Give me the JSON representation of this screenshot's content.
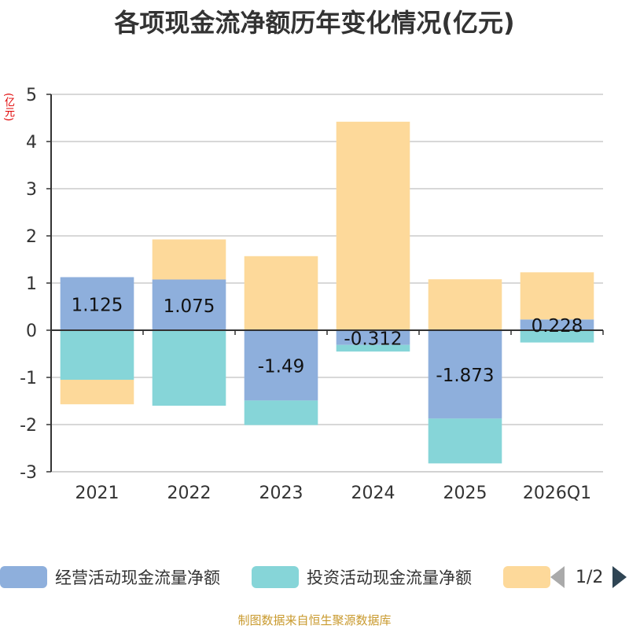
{
  "title": "各项现金流净额历年变化情况(亿元)",
  "unit_label": "(亿元)",
  "source": "制图数据来自恒生聚源数据库",
  "legend": {
    "items": [
      {
        "label": "经营活动现金流量净额",
        "color": "#8eafdc"
      },
      {
        "label": "投资活动现金流量净额",
        "color": "#86d5d8"
      },
      {
        "label": "",
        "color": "#fdd99a"
      }
    ],
    "page_text": "1/2"
  },
  "chart_data": {
    "type": "bar",
    "stacked": true,
    "categories": [
      "2021",
      "2022",
      "2023",
      "2024",
      "2025",
      "2026Q1"
    ],
    "series": [
      {
        "name": "经营活动现金流量净额",
        "color": "#8eafdc",
        "values": [
          1.125,
          1.075,
          -1.49,
          -0.312,
          -1.873,
          0.228
        ],
        "show_labels": true
      },
      {
        "name": "投资活动现金流量净额",
        "color": "#86d5d8",
        "values": [
          -1.05,
          -1.6,
          -0.52,
          -0.14,
          -0.95,
          -0.26
        ],
        "show_labels": false
      },
      {
        "name": "",
        "color": "#fdd99a",
        "values": [
          -0.52,
          0.85,
          1.57,
          4.42,
          1.08,
          1.0
        ],
        "show_labels": false
      }
    ],
    "ylim": [
      -3,
      5
    ],
    "yticks": [
      5,
      4,
      3,
      2,
      1,
      0,
      -1,
      -2,
      -3
    ],
    "grid": true,
    "legend_position": "bottom"
  }
}
